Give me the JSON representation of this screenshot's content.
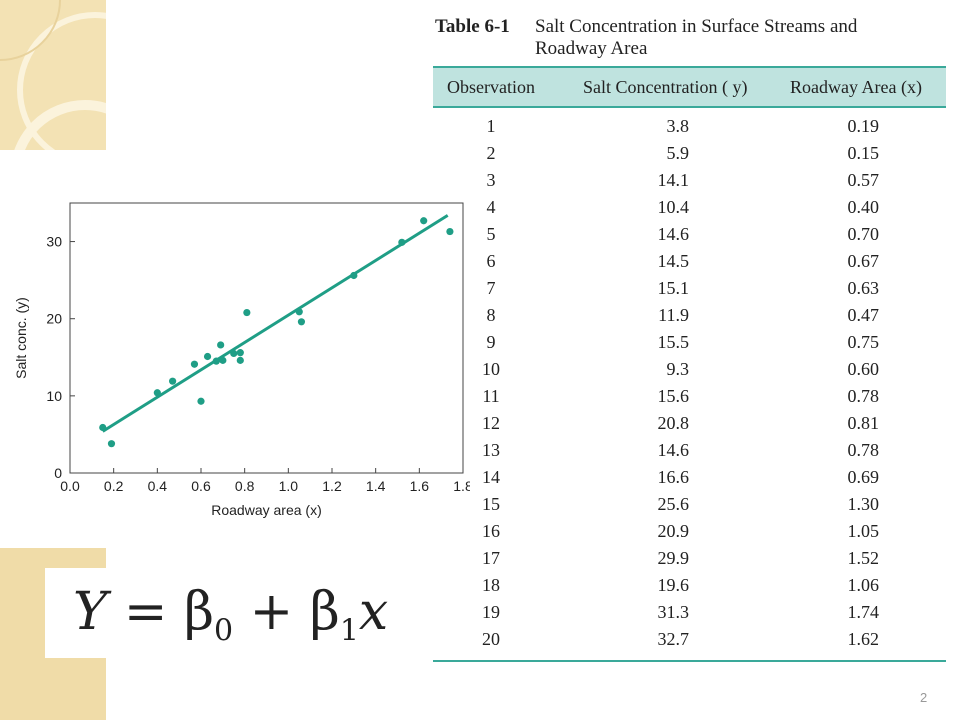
{
  "table": {
    "number": "Table 6-1",
    "title_line1": "Salt Concentration in Surface Streams and",
    "title_line2": "Roadway Area",
    "headers": [
      "Observation",
      "Salt Concentration ( y)",
      "Roadway Area (x)"
    ],
    "rows": [
      [
        "1",
        "3.8",
        "0.19"
      ],
      [
        "2",
        "5.9",
        "0.15"
      ],
      [
        "3",
        "14.1",
        "0.57"
      ],
      [
        "4",
        "10.4",
        "0.40"
      ],
      [
        "5",
        "14.6",
        "0.70"
      ],
      [
        "6",
        "14.5",
        "0.67"
      ],
      [
        "7",
        "15.1",
        "0.63"
      ],
      [
        "8",
        "11.9",
        "0.47"
      ],
      [
        "9",
        "15.5",
        "0.75"
      ],
      [
        "10",
        "9.3",
        "0.60"
      ],
      [
        "11",
        "15.6",
        "0.78"
      ],
      [
        "12",
        "20.8",
        "0.81"
      ],
      [
        "13",
        "14.6",
        "0.78"
      ],
      [
        "14",
        "16.6",
        "0.69"
      ],
      [
        "15",
        "25.6",
        "1.30"
      ],
      [
        "16",
        "20.9",
        "1.05"
      ],
      [
        "17",
        "29.9",
        "1.52"
      ],
      [
        "18",
        "19.6",
        "1.06"
      ],
      [
        "19",
        "31.3",
        "1.74"
      ],
      [
        "20",
        "32.7",
        "1.62"
      ]
    ]
  },
  "chart_data": {
    "type": "scatter",
    "xlabel": "Roadway area (x)",
    "ylabel": "Salt conc. (y)",
    "xlim": [
      0.0,
      1.8
    ],
    "ylim": [
      0,
      35
    ],
    "xticks": [
      "0.0",
      "0.2",
      "0.4",
      "0.6",
      "0.8",
      "1.0",
      "1.2",
      "1.4",
      "1.6",
      "1.8"
    ],
    "yticks": [
      "0",
      "10",
      "20",
      "30"
    ],
    "x": [
      0.19,
      0.15,
      0.57,
      0.4,
      0.7,
      0.67,
      0.63,
      0.47,
      0.75,
      0.6,
      0.78,
      0.81,
      0.78,
      0.69,
      1.3,
      1.05,
      1.52,
      1.06,
      1.74,
      1.62
    ],
    "y": [
      3.8,
      5.9,
      14.1,
      10.4,
      14.6,
      14.5,
      15.1,
      11.9,
      15.5,
      9.3,
      15.6,
      20.8,
      14.6,
      16.6,
      25.6,
      20.9,
      29.9,
      19.6,
      31.3,
      32.7
    ],
    "fit_line": {
      "x": [
        0.15,
        1.73
      ],
      "y": [
        5.4,
        33.4
      ]
    },
    "color": "#1f9e86",
    "grid": false
  },
  "formula": {
    "lhs": "Y",
    "eq": "=",
    "beta0": "β",
    "sub0": "0",
    "plus": "+",
    "beta1": "β",
    "sub1": "1",
    "var": "x"
  },
  "page_number": "2"
}
